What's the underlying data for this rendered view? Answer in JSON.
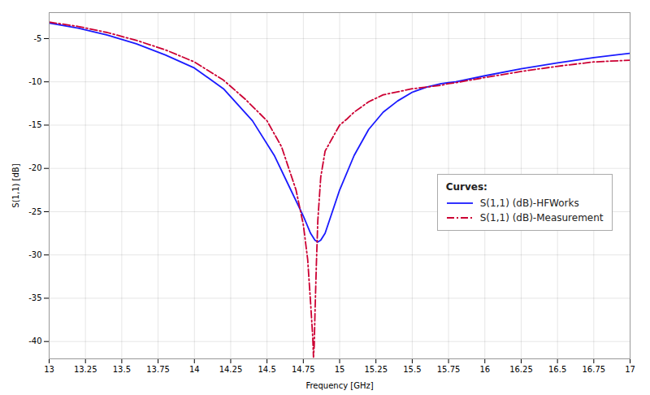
{
  "chart_data": {
    "type": "line",
    "xlabel": "Frequency [GHz]",
    "ylabel": "S(1,1) [dB]",
    "xlim": [
      13,
      17
    ],
    "ylim": [
      -42,
      -2
    ],
    "xticks": [
      13,
      13.25,
      13.5,
      13.75,
      14,
      14.25,
      14.5,
      14.75,
      15,
      15.25,
      15.5,
      15.75,
      16,
      16.25,
      16.5,
      16.75,
      17
    ],
    "yticks": [
      -40,
      -35,
      -30,
      -25,
      -20,
      -15,
      -10,
      -5
    ],
    "grid": true,
    "legend": "center right",
    "legend_title": "Curves:",
    "series": [
      {
        "name": "S(1,1) (dB)-HFWorks",
        "color": "#1a1aff",
        "line_style": "solid",
        "x": [
          13.0,
          13.2,
          13.4,
          13.6,
          13.8,
          14.0,
          14.2,
          14.4,
          14.55,
          14.65,
          14.75,
          14.8,
          14.83,
          14.85,
          14.87,
          14.9,
          15.0,
          15.1,
          15.2,
          15.3,
          15.4,
          15.5,
          15.6,
          15.7,
          15.75,
          15.8,
          16.0,
          16.25,
          16.5,
          16.75,
          17.0
        ],
        "values": [
          -3.2,
          -3.8,
          -4.6,
          -5.6,
          -6.9,
          -8.4,
          -10.8,
          -14.5,
          -18.5,
          -22.0,
          -25.5,
          -27.5,
          -28.3,
          -28.5,
          -28.3,
          -27.5,
          -22.5,
          -18.5,
          -15.5,
          -13.5,
          -12.2,
          -11.2,
          -10.6,
          -10.2,
          -10.1,
          -10.0,
          -9.3,
          -8.5,
          -7.8,
          -7.2,
          -6.7
        ]
      },
      {
        "name": "S(1,1) (dB)-Measurement",
        "color": "#cc0033",
        "line_style": "dashdot",
        "x": [
          13.0,
          13.2,
          13.4,
          13.6,
          13.8,
          14.0,
          14.2,
          14.35,
          14.5,
          14.6,
          14.7,
          14.75,
          14.78,
          14.8,
          14.815,
          14.82,
          14.825,
          14.83,
          14.84,
          14.85,
          14.87,
          14.9,
          15.0,
          15.05,
          15.1,
          15.2,
          15.3,
          15.5,
          15.6,
          15.7,
          15.75,
          15.8,
          16.0,
          16.25,
          16.5,
          16.75,
          17.0
        ],
        "values": [
          -3.1,
          -3.6,
          -4.3,
          -5.2,
          -6.3,
          -7.7,
          -9.8,
          -12.0,
          -14.5,
          -17.5,
          -22.5,
          -26.5,
          -30.5,
          -35.5,
          -39.5,
          -41.8,
          -40.5,
          -37.0,
          -31.0,
          -26.0,
          -21.0,
          -18.0,
          -15.0,
          -14.3,
          -13.5,
          -12.3,
          -11.5,
          -10.8,
          -10.6,
          -10.4,
          -10.2,
          -10.1,
          -9.5,
          -8.8,
          -8.2,
          -7.7,
          -7.5
        ]
      }
    ]
  }
}
